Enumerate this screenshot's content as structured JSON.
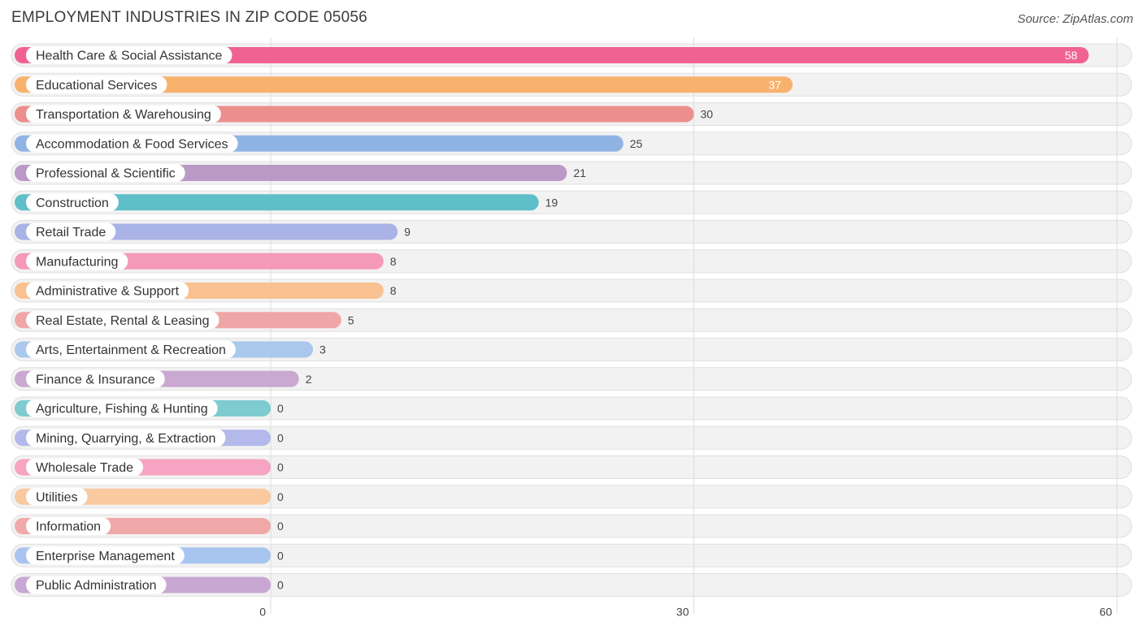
{
  "header": {
    "title": "EMPLOYMENT INDUSTRIES IN ZIP CODE 05056",
    "source": "Source: ZipAtlas.com"
  },
  "chart_data": {
    "type": "bar",
    "orientation": "horizontal",
    "title": "EMPLOYMENT INDUSTRIES IN ZIP CODE 05056",
    "categories": [
      "Health Care & Social Assistance",
      "Educational Services",
      "Transportation & Warehousing",
      "Accommodation & Food Services",
      "Professional & Scientific",
      "Construction",
      "Retail Trade",
      "Manufacturing",
      "Administrative & Support",
      "Real Estate, Rental & Leasing",
      "Arts, Entertainment & Recreation",
      "Finance & Insurance",
      "Agriculture, Fishing & Hunting",
      "Mining, Quarrying, & Extraction",
      "Wholesale Trade",
      "Utilities",
      "Information",
      "Enterprise Management",
      "Public Administration"
    ],
    "values": [
      58,
      37,
      30,
      25,
      21,
      19,
      9,
      8,
      8,
      5,
      3,
      2,
      0,
      0,
      0,
      0,
      0,
      0,
      0
    ],
    "colors": [
      "#f06292",
      "#f9b26e",
      "#ec8f8c",
      "#8fb3e3",
      "#bb99c6",
      "#5fbfc9",
      "#aab3e6",
      "#f59ab8",
      "#f9c190",
      "#f0a6a6",
      "#a9c8ec",
      "#c9a8d2",
      "#7ecbd0",
      "#b3b9ea",
      "#f7a3c2",
      "#f9c9a0",
      "#f0a8a8",
      "#a7c5ee",
      "#c8a8d2"
    ],
    "xlim": [
      0,
      60
    ],
    "xticks": [
      0,
      30,
      60
    ],
    "grid": true,
    "legend": "none"
  }
}
